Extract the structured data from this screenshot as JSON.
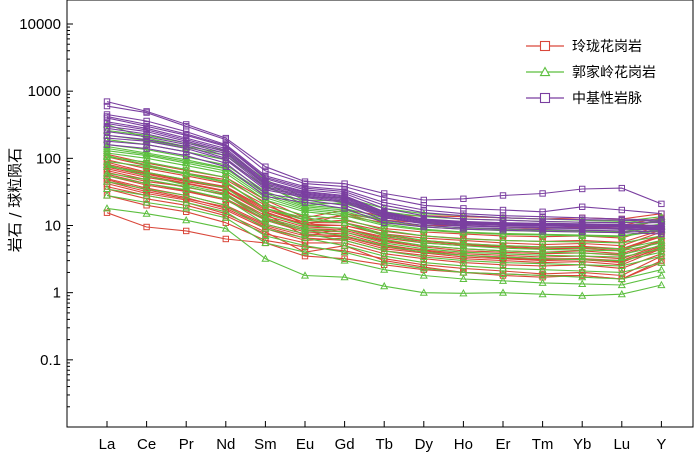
{
  "chart_data": {
    "type": "line",
    "y_scale": "log",
    "ylabel": "岩石 / 球粒陨石",
    "ylim": [
      0.01,
      10000
    ],
    "y_ticks": [
      {
        "value": 0.1,
        "label": "0.1"
      },
      {
        "value": 1,
        "label": "1"
      },
      {
        "value": 10,
        "label": "10"
      },
      {
        "value": 100,
        "label": "100"
      },
      {
        "value": 1000,
        "label": "1000"
      },
      {
        "value": 10000,
        "label": "10000"
      }
    ],
    "categories": [
      "La",
      "Ce",
      "Pr",
      "Nd",
      "Sm",
      "Eu",
      "Gd",
      "Tb",
      "Dy",
      "Ho",
      "Er",
      "Tm",
      "Yb",
      "Lu",
      "Y"
    ],
    "legend_position": "top-right",
    "groups": [
      {
        "name": "玲珑花岗岩",
        "color": "#d9473a",
        "marker": "square",
        "series": [
          [
            15.5,
            9.5,
            8.3,
            6.3,
            5.5,
            3.5,
            3.2,
            2.6,
            2.2,
            2.0,
            1.9,
            1.8,
            1.8,
            1.6,
            3.0
          ],
          [
            28,
            20,
            16,
            11,
            6.0,
            4.8,
            4.2,
            3.2,
            2.6,
            2.3,
            2.1,
            1.9,
            2.0,
            1.8,
            3.5
          ],
          [
            38,
            28,
            22,
            15,
            8.0,
            4.0,
            5.0,
            3.0,
            2.4,
            2.0,
            1.8,
            1.7,
            1.8,
            1.6,
            2.8
          ],
          [
            48,
            34,
            26,
            18,
            9.5,
            6.5,
            6.0,
            4.2,
            3.6,
            3.2,
            3.0,
            2.8,
            2.9,
            2.6,
            4.5
          ],
          [
            55,
            40,
            32,
            24,
            12,
            8.0,
            7.5,
            5.2,
            4.2,
            3.6,
            3.4,
            3.2,
            3.2,
            3.0,
            5.0
          ],
          [
            62,
            45,
            38,
            28,
            13,
            9.0,
            8.5,
            6.0,
            5.0,
            4.5,
            4.2,
            4.0,
            4.2,
            3.8,
            6.0
          ],
          [
            70,
            52,
            42,
            32,
            15,
            7.0,
            9.0,
            6.5,
            5.5,
            5.0,
            4.8,
            4.5,
            4.6,
            4.2,
            7.0
          ],
          [
            78,
            58,
            45,
            36,
            16,
            10,
            10,
            7.5,
            6.5,
            6.0,
            5.5,
            5.2,
            5.4,
            5.0,
            8.0
          ],
          [
            88,
            62,
            48,
            38,
            18,
            11,
            12,
            9.0,
            8.0,
            7.5,
            7.0,
            6.8,
            7.0,
            6.5,
            10
          ],
          [
            95,
            70,
            55,
            42,
            20,
            12,
            14,
            11,
            10,
            10,
            9.5,
            9.0,
            9.5,
            9.0,
            12
          ],
          [
            105,
            78,
            60,
            48,
            22,
            10,
            15,
            12,
            11,
            11,
            10,
            10,
            10.5,
            10,
            13
          ],
          [
            115,
            85,
            66,
            52,
            24,
            13,
            17,
            14,
            14,
            13.5,
            13,
            12.5,
            13,
            12.5,
            15
          ],
          [
            35,
            25,
            20,
            14,
            7.5,
            5.5,
            5.5,
            3.8,
            3.2,
            2.8,
            2.6,
            2.5,
            2.6,
            2.3,
            3.8
          ],
          [
            42,
            30,
            24,
            17,
            9.0,
            6.0,
            6.5,
            4.5,
            3.9,
            3.4,
            3.2,
            3.0,
            3.1,
            2.8,
            4.8
          ],
          [
            50,
            36,
            28,
            20,
            10.5,
            7.5,
            7.0,
            5.0,
            4.3,
            3.8,
            3.6,
            3.4,
            3.5,
            3.2,
            5.2
          ],
          [
            58,
            42,
            33,
            25,
            12.5,
            8.5,
            8.0,
            5.8,
            4.8,
            4.2,
            4.0,
            3.8,
            3.9,
            3.6,
            5.8
          ],
          [
            66,
            48,
            37,
            29,
            14,
            9.5,
            9.0,
            6.8,
            5.8,
            5.2,
            4.9,
            4.7,
            4.8,
            4.4,
            6.8
          ],
          [
            74,
            55,
            43,
            33,
            15.5,
            10.5,
            10,
            7.2,
            6.0,
            5.4,
            5.0,
            4.8,
            4.9,
            4.5,
            7.2
          ],
          [
            82,
            60,
            47,
            37,
            17,
            11,
            11,
            8.2,
            7.0,
            6.4,
            6.0,
            5.8,
            6.0,
            5.6,
            8.5
          ],
          [
            45,
            32,
            25,
            19,
            10,
            7.0,
            6.8,
            4.8,
            4.0,
            3.6,
            3.3,
            3.1,
            3.2,
            2.9,
            4.6
          ]
        ]
      },
      {
        "name": "郭家岭花岗岩",
        "color": "#5cbf3f",
        "marker": "triangle",
        "series": [
          [
            18,
            15,
            12,
            9.0,
            3.2,
            1.8,
            1.7,
            1.25,
            1.0,
            0.98,
            1.0,
            0.95,
            0.9,
            0.95,
            1.3
          ],
          [
            28,
            22,
            18,
            13,
            5.5,
            4.0,
            3.0,
            2.2,
            1.8,
            1.6,
            1.5,
            1.4,
            1.35,
            1.3,
            1.8
          ],
          [
            45,
            35,
            28,
            20,
            9.0,
            6.5,
            5.0,
            3.5,
            2.8,
            2.5,
            2.3,
            2.2,
            2.1,
            2.0,
            2.8
          ],
          [
            60,
            48,
            38,
            28,
            12,
            8.5,
            7.0,
            5.0,
            4.0,
            3.6,
            3.4,
            3.2,
            3.1,
            3.0,
            4.0
          ],
          [
            75,
            62,
            48,
            36,
            15,
            10,
            9.0,
            6.2,
            5.0,
            4.5,
            4.2,
            4.0,
            3.9,
            3.7,
            5.0
          ],
          [
            90,
            75,
            58,
            44,
            18,
            12,
            11,
            7.5,
            6.0,
            5.4,
            5.0,
            4.8,
            4.7,
            4.5,
            6.0
          ],
          [
            105,
            88,
            68,
            52,
            21,
            14,
            12.5,
            8.5,
            7.0,
            6.3,
            6.0,
            5.8,
            5.7,
            5.5,
            7.0
          ],
          [
            120,
            100,
            78,
            60,
            24,
            16,
            14,
            10,
            8.5,
            7.8,
            7.4,
            7.2,
            7.0,
            6.8,
            8.5
          ],
          [
            140,
            115,
            90,
            70,
            28,
            18,
            16,
            11.5,
            9.5,
            8.8,
            8.4,
            8.2,
            8.0,
            7.8,
            9.5
          ],
          [
            160,
            135,
            105,
            80,
            32,
            20,
            18,
            13,
            11,
            10,
            9.5,
            9.2,
            9.0,
            8.8,
            10.5
          ],
          [
            190,
            160,
            125,
            95,
            38,
            22,
            21,
            14.5,
            12,
            11,
            10.5,
            10.2,
            10,
            9.8,
            11.5
          ],
          [
            220,
            185,
            145,
            110,
            42,
            24,
            23,
            16,
            13.5,
            12.5,
            12,
            11.5,
            11.2,
            11,
            12.5
          ],
          [
            260,
            220,
            170,
            130,
            48,
            26,
            26,
            18,
            15,
            14,
            13,
            12.5,
            12,
            11.5,
            13.5
          ],
          [
            320,
            200,
            150,
            120,
            40,
            20,
            22,
            15,
            12,
            11,
            10.5,
            10,
            9.8,
            9.5,
            12
          ],
          [
            80,
            55,
            40,
            30,
            13,
            9.0,
            8.0,
            5.5,
            4.5,
            4.0,
            3.8,
            3.6,
            3.5,
            3.4,
            4.5
          ],
          [
            110,
            80,
            60,
            45,
            18,
            13,
            11,
            7.0,
            5.5,
            5.0,
            4.6,
            4.4,
            4.3,
            4.2,
            5.5
          ],
          [
            35,
            28,
            22,
            16,
            7.0,
            5.0,
            4.0,
            2.8,
            2.3,
            2.0,
            1.9,
            1.8,
            1.7,
            1.6,
            2.2
          ],
          [
            130,
            110,
            85,
            65,
            26,
            17,
            15,
            10.5,
            8.8,
            8.0,
            7.6,
            7.4,
            7.2,
            7.0,
            8.8
          ],
          [
            150,
            120,
            95,
            72,
            30,
            19,
            17,
            12,
            10,
            9.2,
            8.8,
            8.5,
            8.3,
            8.1,
            9.8
          ],
          [
            55,
            42,
            34,
            25,
            10.5,
            7.5,
            6.0,
            4.2,
            3.4,
            3.0,
            2.8,
            2.7,
            2.6,
            2.5,
            3.5
          ]
        ]
      },
      {
        "name": "中基性岩脉",
        "color": "#7a3fa0",
        "marker": "square",
        "series": [
          [
            700,
            500,
            320,
            200,
            75,
            45,
            42,
            30,
            24,
            25,
            28,
            30,
            35,
            36,
            21
          ],
          [
            600,
            480,
            300,
            190,
            65,
            42,
            38,
            26,
            20,
            18,
            17,
            16,
            19,
            17,
            15
          ],
          [
            450,
            360,
            250,
            160,
            55,
            38,
            34,
            22,
            17,
            15,
            14,
            13.5,
            13,
            12.5,
            12
          ],
          [
            400,
            300,
            220,
            150,
            50,
            34,
            30,
            18,
            14,
            12.5,
            12,
            11.5,
            11.2,
            11,
            11
          ],
          [
            350,
            280,
            200,
            140,
            46,
            32,
            28,
            16,
            12.5,
            11.5,
            11,
            10.8,
            10.6,
            10.4,
            10
          ],
          [
            300,
            250,
            180,
            125,
            42,
            30,
            26,
            15,
            12,
            11,
            10.5,
            10.2,
            10,
            9.8,
            9.5
          ],
          [
            250,
            210,
            160,
            110,
            38,
            28,
            24,
            14,
            11.2,
            10.4,
            10,
            9.8,
            9.6,
            9.4,
            9.0
          ],
          [
            200,
            180,
            140,
            95,
            34,
            26,
            22,
            13,
            10.6,
            9.8,
            9.5,
            9.2,
            9.0,
            8.8,
            8.5
          ],
          [
            180,
            160,
            125,
            85,
            30,
            24,
            20,
            12,
            10,
            9.3,
            9.0,
            8.7,
            8.5,
            8.3,
            8.0
          ],
          [
            160,
            140,
            110,
            75,
            27,
            22,
            18,
            11,
            9.5,
            8.8,
            8.5,
            8.2,
            8.0,
            7.8,
            7.5
          ],
          [
            220,
            190,
            150,
            100,
            36,
            27,
            23,
            13.5,
            10.8,
            10,
            9.6,
            9.4,
            9.2,
            9.0,
            8.8
          ],
          [
            280,
            230,
            170,
            118,
            40,
            29,
            25,
            14.5,
            11.6,
            10.7,
            10.2,
            10,
            9.8,
            9.6,
            9.2
          ],
          [
            330,
            265,
            190,
            132,
            44,
            31,
            27,
            15.5,
            12.2,
            11.2,
            10.8,
            10.5,
            10.3,
            10.1,
            9.8
          ],
          [
            420,
            320,
            230,
            155,
            52,
            36,
            32,
            20,
            15.5,
            14,
            13,
            12.5,
            12.2,
            12,
            11.5
          ]
        ]
      }
    ]
  }
}
